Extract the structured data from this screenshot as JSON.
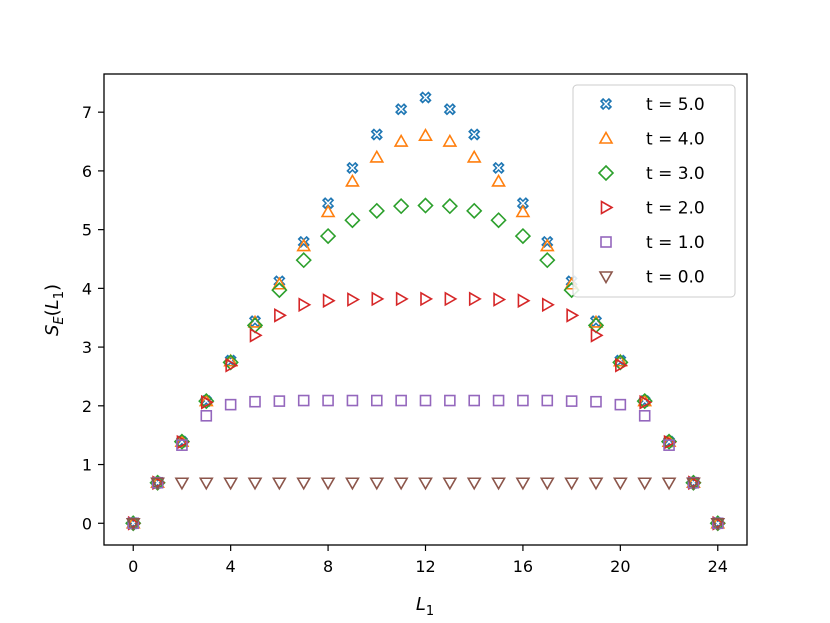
{
  "chart_data": {
    "type": "scatter",
    "title": "",
    "xlabel": {
      "main": "L",
      "sub": "1"
    },
    "ylabel": {
      "main": "S",
      "sub": "E",
      "paren_main": "L",
      "paren_sub": "1"
    },
    "xlim": [
      -1.2,
      25.2
    ],
    "ylim": [
      -0.37,
      7.65
    ],
    "xticks": [
      0,
      4,
      8,
      12,
      16,
      20,
      24
    ],
    "yticks": [
      0,
      1,
      2,
      3,
      4,
      5,
      6,
      7
    ],
    "grid": false,
    "legend_position": "top-right",
    "series": [
      {
        "name": "t = 5.0",
        "marker": "x-filled",
        "color": "#1f77b4",
        "x": [
          0,
          1,
          2,
          3,
          4,
          5,
          6,
          7,
          8,
          9,
          10,
          11,
          12,
          13,
          14,
          15,
          16,
          17,
          18,
          19,
          20,
          21,
          22,
          23,
          24
        ],
        "values": [
          0,
          0.69,
          1.39,
          2.08,
          2.77,
          3.44,
          4.12,
          4.79,
          5.45,
          6.05,
          6.62,
          7.05,
          7.25,
          7.05,
          6.62,
          6.05,
          5.45,
          4.79,
          4.12,
          3.44,
          2.77,
          2.08,
          1.39,
          0.69,
          0
        ]
      },
      {
        "name": "t = 4.0",
        "marker": "triangle-up",
        "color": "#ff7f0e",
        "x": [
          0,
          1,
          2,
          3,
          4,
          5,
          6,
          7,
          8,
          9,
          10,
          11,
          12,
          13,
          14,
          15,
          16,
          17,
          18,
          19,
          20,
          21,
          22,
          23,
          24
        ],
        "values": [
          0,
          0.69,
          1.39,
          2.08,
          2.76,
          3.42,
          4.07,
          4.72,
          5.3,
          5.82,
          6.23,
          6.5,
          6.6,
          6.5,
          6.23,
          5.82,
          5.3,
          4.72,
          4.07,
          3.42,
          2.76,
          2.08,
          1.39,
          0.69,
          0
        ]
      },
      {
        "name": "t = 3.0",
        "marker": "diamond",
        "color": "#2ca02c",
        "x": [
          0,
          1,
          2,
          3,
          4,
          5,
          6,
          7,
          8,
          9,
          10,
          11,
          12,
          13,
          14,
          15,
          16,
          17,
          18,
          19,
          20,
          21,
          22,
          23,
          24
        ],
        "values": [
          0,
          0.69,
          1.39,
          2.08,
          2.74,
          3.37,
          3.97,
          4.48,
          4.89,
          5.16,
          5.32,
          5.4,
          5.41,
          5.4,
          5.32,
          5.16,
          4.89,
          4.48,
          3.97,
          3.37,
          2.74,
          2.08,
          1.39,
          0.69,
          0
        ]
      },
      {
        "name": "t = 2.0",
        "marker": "triangle-right",
        "color": "#d62728",
        "x": [
          0,
          1,
          2,
          3,
          4,
          5,
          6,
          7,
          8,
          9,
          10,
          11,
          12,
          13,
          14,
          15,
          16,
          17,
          18,
          19,
          20,
          21,
          22,
          23,
          24
        ],
        "values": [
          0,
          0.69,
          1.38,
          2.06,
          2.69,
          3.2,
          3.54,
          3.72,
          3.79,
          3.81,
          3.82,
          3.82,
          3.82,
          3.82,
          3.82,
          3.81,
          3.79,
          3.72,
          3.54,
          3.2,
          2.69,
          2.06,
          1.38,
          0.69,
          0
        ]
      },
      {
        "name": "t = 1.0",
        "marker": "square",
        "color": "#9467bd",
        "x": [
          0,
          1,
          2,
          3,
          4,
          5,
          6,
          7,
          8,
          9,
          10,
          11,
          12,
          13,
          14,
          15,
          16,
          17,
          18,
          19,
          20,
          21,
          22,
          23,
          24
        ],
        "values": [
          0,
          0.69,
          1.33,
          1.83,
          2.02,
          2.07,
          2.08,
          2.09,
          2.09,
          2.09,
          2.09,
          2.09,
          2.09,
          2.09,
          2.09,
          2.09,
          2.09,
          2.09,
          2.08,
          2.07,
          2.02,
          1.83,
          1.33,
          0.69,
          0
        ]
      },
      {
        "name": "t = 0.0",
        "marker": "triangle-down",
        "color": "#8c564b",
        "x": [
          0,
          1,
          2,
          3,
          4,
          5,
          6,
          7,
          8,
          9,
          10,
          11,
          12,
          13,
          14,
          15,
          16,
          17,
          18,
          19,
          20,
          21,
          22,
          23,
          24
        ],
        "values": [
          0,
          0.69,
          0.69,
          0.69,
          0.69,
          0.69,
          0.69,
          0.69,
          0.69,
          0.69,
          0.69,
          0.69,
          0.69,
          0.69,
          0.69,
          0.69,
          0.69,
          0.69,
          0.69,
          0.69,
          0.69,
          0.69,
          0.69,
          0.69,
          0
        ]
      }
    ]
  }
}
